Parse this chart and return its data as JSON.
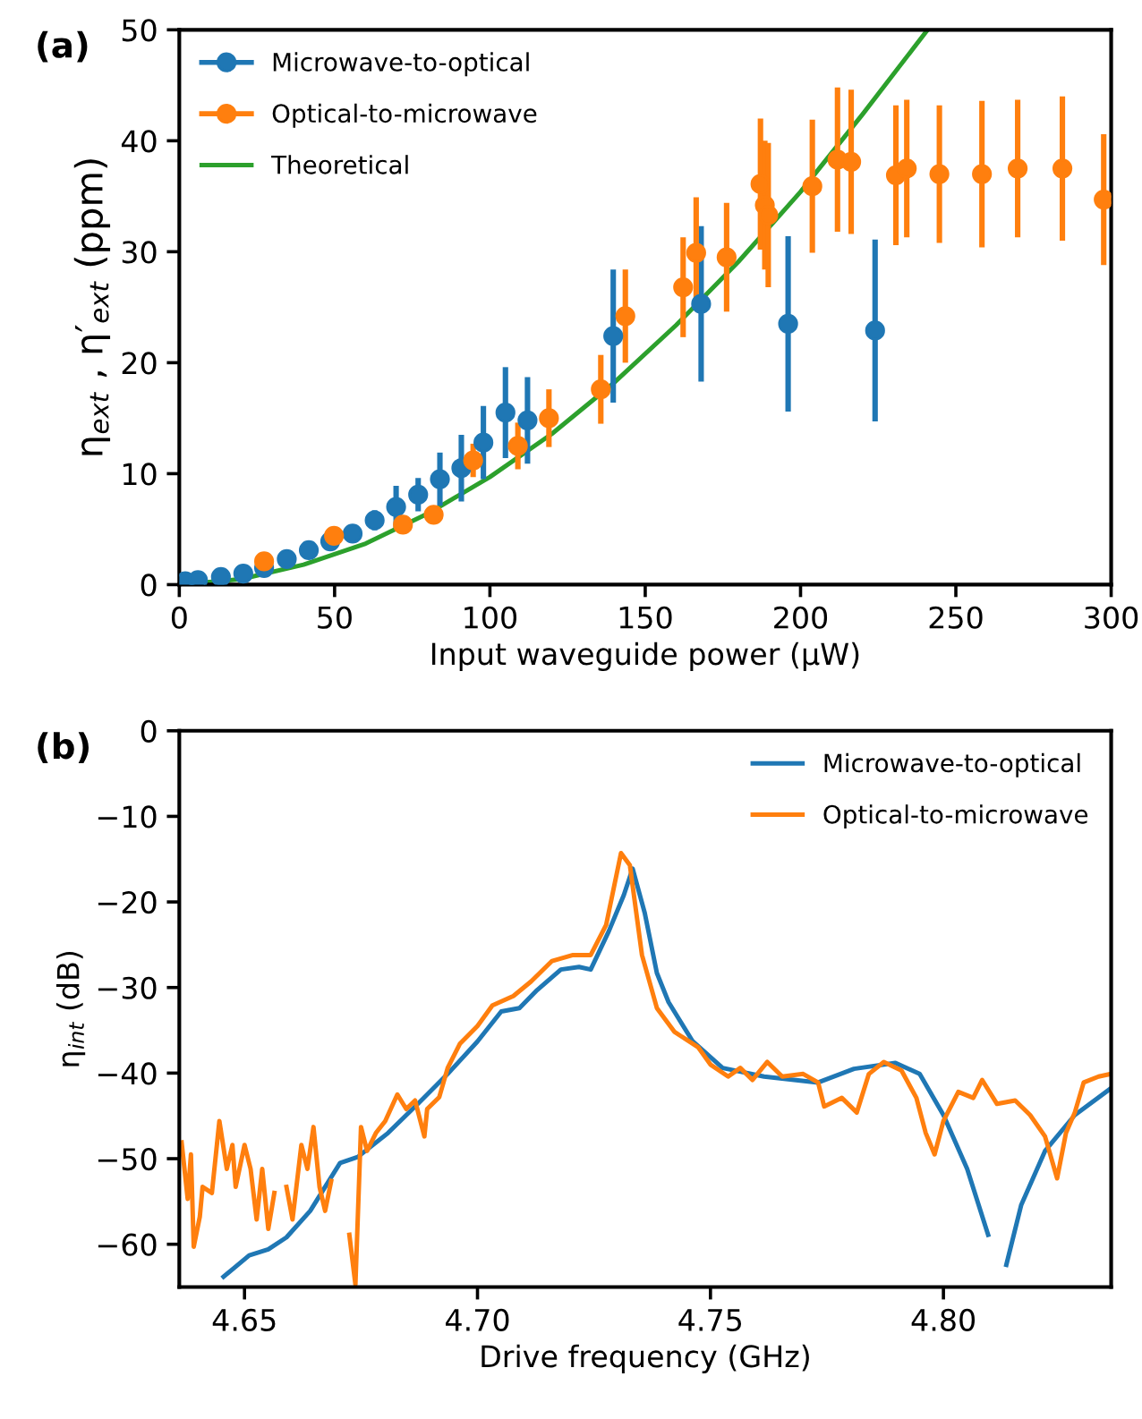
{
  "chart_data": [
    {
      "type": "scatter",
      "title": "(a)",
      "xlabel": "Input waveguide power (μW)",
      "ylabel": "η$_{ext}$ , η′$_{ext}$ (ppm)",
      "xlim": [
        0,
        300
      ],
      "ylim": [
        0,
        50
      ],
      "xticks": [
        0,
        50,
        100,
        150,
        200,
        250,
        300
      ],
      "yticks": [
        0,
        10,
        20,
        30,
        40,
        50
      ],
      "grid": false,
      "legend": "top left",
      "series": [
        {
          "name": "Microwave-to-optical",
          "color": "#1f77b4",
          "marker": "circle",
          "x": [
            1.9,
            6,
            13.4,
            20.6,
            27.3,
            34.6,
            41.7,
            48.6,
            55.8,
            62.9,
            69.8,
            76.9,
            83.9,
            90.8,
            97.9,
            105,
            112.1,
            139.7,
            168,
            196,
            224
          ],
          "values": [
            0.3,
            0.4,
            0.7,
            1.0,
            1.5,
            2.3,
            3.1,
            3.9,
            4.6,
            5.8,
            7.0,
            8.1,
            9.5,
            10.5,
            12.8,
            15.5,
            14.8,
            22.4,
            25.3,
            23.5,
            22.9
          ],
          "errors": [
            null,
            null,
            null,
            null,
            null,
            null,
            null,
            null,
            null,
            0.9,
            1.9,
            1.5,
            2.4,
            3,
            3.3,
            4.1,
            3.9,
            6,
            7,
            7.9,
            8.2
          ]
        },
        {
          "name": "Optical-to-microwave",
          "color": "#ff7f0e",
          "marker": "circle",
          "x": [
            27.3,
            49.8,
            72,
            81.9,
            94.6,
            109,
            119,
            135.7,
            143.6,
            162.2,
            166.4,
            176.2,
            187.1,
            188.5,
            189.6,
            203.8,
            211.9,
            216.3,
            230.7,
            234.2,
            244.7,
            258.4,
            269.9,
            284.3,
            297.6
          ],
          "values": [
            2.1,
            4.4,
            5.4,
            6.3,
            11.2,
            12.5,
            15.0,
            17.6,
            24.2,
            26.8,
            29.9,
            29.5,
            36.1,
            34.2,
            33.3,
            35.9,
            38.3,
            38.1,
            36.9,
            37.5,
            37.0,
            37.0,
            37.5,
            37.5,
            34.7
          ],
          "errors": [
            null,
            null,
            null,
            0.6,
            1.5,
            2.1,
            2.6,
            3.1,
            4.2,
            4.5,
            5,
            4.9,
            5.9,
            5.8,
            6.5,
            6,
            6.5,
            6.5,
            6.3,
            6.2,
            6.2,
            6.6,
            6.2,
            6.5,
            5.9
          ]
        },
        {
          "name": "Theoretical",
          "type": "line",
          "marker": "none",
          "color": "#2ca02c",
          "x": [
            0,
            20,
            40,
            60,
            80,
            100,
            120,
            140,
            160,
            180,
            200,
            220,
            240.9
          ],
          "values": [
            0,
            0.5,
            1.8,
            3.7,
            6.4,
            9.7,
            13.6,
            18.2,
            23.4,
            29.1,
            35.4,
            42.4,
            50
          ]
        }
      ]
    },
    {
      "type": "line",
      "title": "(b)",
      "xlabel": "Drive frequency (GHz)",
      "ylabel": "η$_{int}$ (dB)",
      "xlim": [
        4.636,
        4.836
      ],
      "ylim": [
        -65,
        0
      ],
      "xticks": [
        {
          "value": 4.65,
          "label": "4.65"
        },
        {
          "value": 4.7,
          "label": "4.70"
        },
        {
          "value": 4.75,
          "label": "4.75"
        },
        {
          "value": 4.8,
          "label": "4.80"
        }
      ],
      "yticks": [
        {
          "value": 0,
          "label": "0"
        },
        {
          "value": -10,
          "label": "−10"
        },
        {
          "value": -20,
          "label": "−20"
        },
        {
          "value": -30,
          "label": "−30"
        },
        {
          "value": -40,
          "label": "−40"
        },
        {
          "value": -50,
          "label": "−50"
        },
        {
          "value": -60,
          "label": "−60"
        }
      ],
      "grid": false,
      "legend": "top right",
      "marker": "none",
      "line_style": "solid",
      "series": [
        {
          "name": "Microwave-to-optical",
          "color": "#1f77b4",
          "x": [
            4.6455,
            4.651,
            4.6551,
            4.659,
            4.6641,
            4.6705,
            4.6743,
            4.6808,
            4.6872,
            4.6936,
            4.7,
            4.7051,
            4.709,
            4.7128,
            4.7179,
            4.7218,
            4.7243,
            4.7282,
            4.7314,
            4.7333,
            4.7359,
            4.7385,
            4.741,
            4.7462,
            4.7526,
            4.7615,
            4.7731,
            4.7808,
            4.7897,
            4.7949,
            4.8,
            4.8051,
            4.8096,
            4.8122,
            4.8135,
            4.8167,
            4.8218,
            4.8282,
            4.8359
          ],
          "values": [
            -63.8,
            -61.3,
            -60.6,
            -59.2,
            -56.1,
            -50.5,
            -49.8,
            -47.0,
            -43.6,
            -40.1,
            -36.3,
            -32.8,
            -32.4,
            -30.3,
            -27.9,
            -27.6,
            -27.9,
            -23.4,
            -19.2,
            -16.1,
            -21.3,
            -28.3,
            -31.7,
            -36.3,
            -39.4,
            -40.4,
            -41.1,
            -39.5,
            -38.8,
            -40.1,
            -44.9,
            -51.2,
            -58.9,
            null,
            -62.4,
            -55.4,
            -49.1,
            -44.9,
            -41.8
          ]
        },
        {
          "name": "Optical-to-microwave",
          "color": "#ff7f0e",
          "x": [
            4.6365,
            4.6378,
            4.6385,
            4.6391,
            4.6404,
            4.641,
            4.643,
            4.6446,
            4.6462,
            4.6474,
            4.6481,
            4.65,
            4.6513,
            4.6526,
            4.6538,
            4.6551,
            4.6564,
            4.6577,
            4.659,
            4.6603,
            4.6622,
            4.6635,
            4.6648,
            4.6661,
            4.6673,
            4.6686,
            4.6705,
            4.6725,
            4.6738,
            4.675,
            4.6763,
            4.6782,
            4.6802,
            4.6828,
            4.6847,
            4.6866,
            4.6886,
            4.6892,
            4.6918,
            4.6936,
            4.6962,
            4.7,
            4.7032,
            4.7077,
            4.7115,
            4.716,
            4.7205,
            4.7243,
            4.7276,
            4.7308,
            4.7327,
            4.7353,
            4.7385,
            4.7423,
            4.7474,
            4.75,
            4.7538,
            4.7564,
            4.759,
            4.7622,
            4.7654,
            4.7699,
            4.7731,
            4.7744,
            4.7782,
            4.7814,
            4.784,
            4.7872,
            4.791,
            4.7942,
            4.7962,
            4.7981,
            4.8,
            4.8032,
            4.8064,
            4.8083,
            4.8115,
            4.8154,
            4.8186,
            4.8218,
            4.8244,
            4.8263,
            4.8282,
            4.8301,
            4.8333,
            4.8359
          ],
          "values": [
            -48.1,
            -54.7,
            -49.5,
            -60.3,
            -56.8,
            -53.3,
            -54,
            -45.6,
            -51.2,
            -48.4,
            -53.3,
            -48.4,
            -51.2,
            -57.1,
            -51.2,
            -58.2,
            -54,
            null,
            -53.3,
            -57.1,
            -48.4,
            -51.2,
            -46.3,
            -53.3,
            -56.1,
            -52.6,
            null,
            -58.9,
            -64.7,
            -46.3,
            -49.1,
            -47.0,
            -45.6,
            -42.5,
            -44.2,
            -43.2,
            -47.4,
            -44.2,
            -42.8,
            -39.4,
            -36.6,
            -34.5,
            -32.1,
            -31.0,
            -29.3,
            -26.9,
            -26.2,
            -26.2,
            -22.7,
            -14.3,
            -15.7,
            -26.2,
            -32.4,
            -35.2,
            -37.0,
            -39.0,
            -40.4,
            -39.4,
            -40.8,
            -38.7,
            -40.4,
            -40.1,
            -41.1,
            -43.9,
            -42.9,
            -44.6,
            -40.1,
            -38.7,
            -39.7,
            -42.9,
            -47.0,
            -49.5,
            -45.6,
            -42.2,
            -42.9,
            -40.8,
            -43.6,
            -43.2,
            -44.9,
            -47.4,
            -52.3,
            -47.0,
            -44.6,
            -41.1,
            -40.4,
            -40.1
          ]
        }
      ]
    }
  ]
}
